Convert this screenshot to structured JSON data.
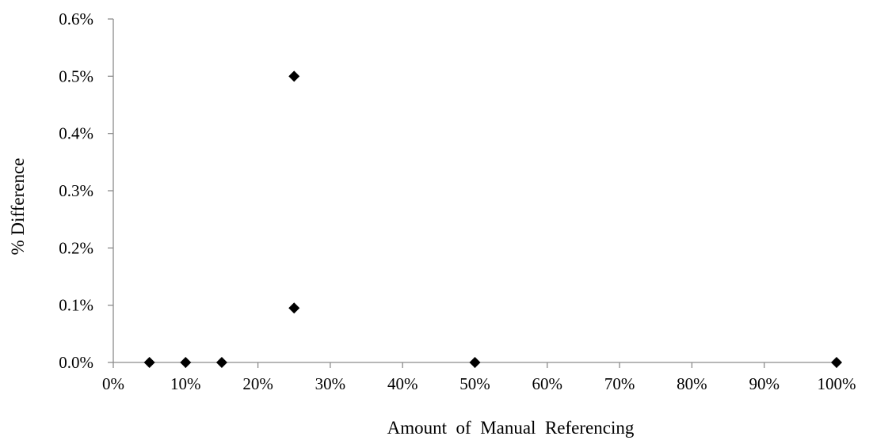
{
  "chart_data": {
    "type": "scatter",
    "xlabel": "Amount  of  Manual  Referencing",
    "ylabel": "% Difference",
    "xlim": [
      0,
      100
    ],
    "ylim": [
      0,
      0.6
    ],
    "x_ticks": [
      0,
      10,
      20,
      30,
      40,
      50,
      60,
      70,
      80,
      90,
      100
    ],
    "x_tick_labels": [
      "0%",
      "10%",
      "20%",
      "30%",
      "40%",
      "50%",
      "60%",
      "70%",
      "80%",
      "90%",
      "100%"
    ],
    "y_ticks": [
      0,
      0.1,
      0.2,
      0.3,
      0.4,
      0.5,
      0.6
    ],
    "y_tick_labels": [
      "0.0%",
      "0.1%",
      "0.2%",
      "0.3%",
      "0.4%",
      "0.5%",
      "0.6%"
    ],
    "grid": false,
    "marker": "diamond",
    "marker_color": "#000000",
    "points": [
      {
        "x": 5,
        "y": 0.0
      },
      {
        "x": 10,
        "y": 0.0
      },
      {
        "x": 15,
        "y": 0.0
      },
      {
        "x": 25,
        "y": 0.5
      },
      {
        "x": 25,
        "y": 0.095
      },
      {
        "x": 50,
        "y": 0.0
      },
      {
        "x": 100,
        "y": 0.0
      }
    ]
  }
}
